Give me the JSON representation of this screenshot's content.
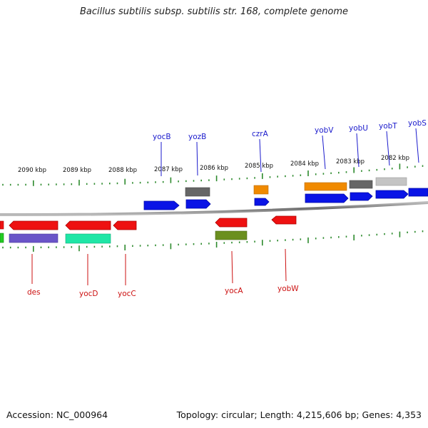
{
  "title": "Bacillus subtilis subsp. subtilis str. 168, complete genome",
  "footer": {
    "accession": "Accession: NC_000964",
    "summary": "Topology: circular; Length: 4,215,606 bp; Genes: 4,353"
  },
  "colors": {
    "forward_label": "#1a1acc",
    "reverse_label": "#cc1111",
    "tick": "#2d8a2d",
    "backbone": "#8a8a8a"
  },
  "scale_labels": [
    "2090 kbp",
    "2089 kbp",
    "2088 kbp",
    "2087 kbp",
    "2086 kbp",
    "2085 kbp",
    "2084 kbp",
    "2083 kbp",
    "2082 kbp"
  ],
  "genes_forward": [
    "yocB",
    "yozB",
    "czrA",
    "yobV",
    "yobU",
    "yobT",
    "yobS"
  ],
  "genes_reverse": [
    "des",
    "yocD",
    "yocC",
    "yocA",
    "yobW"
  ]
}
